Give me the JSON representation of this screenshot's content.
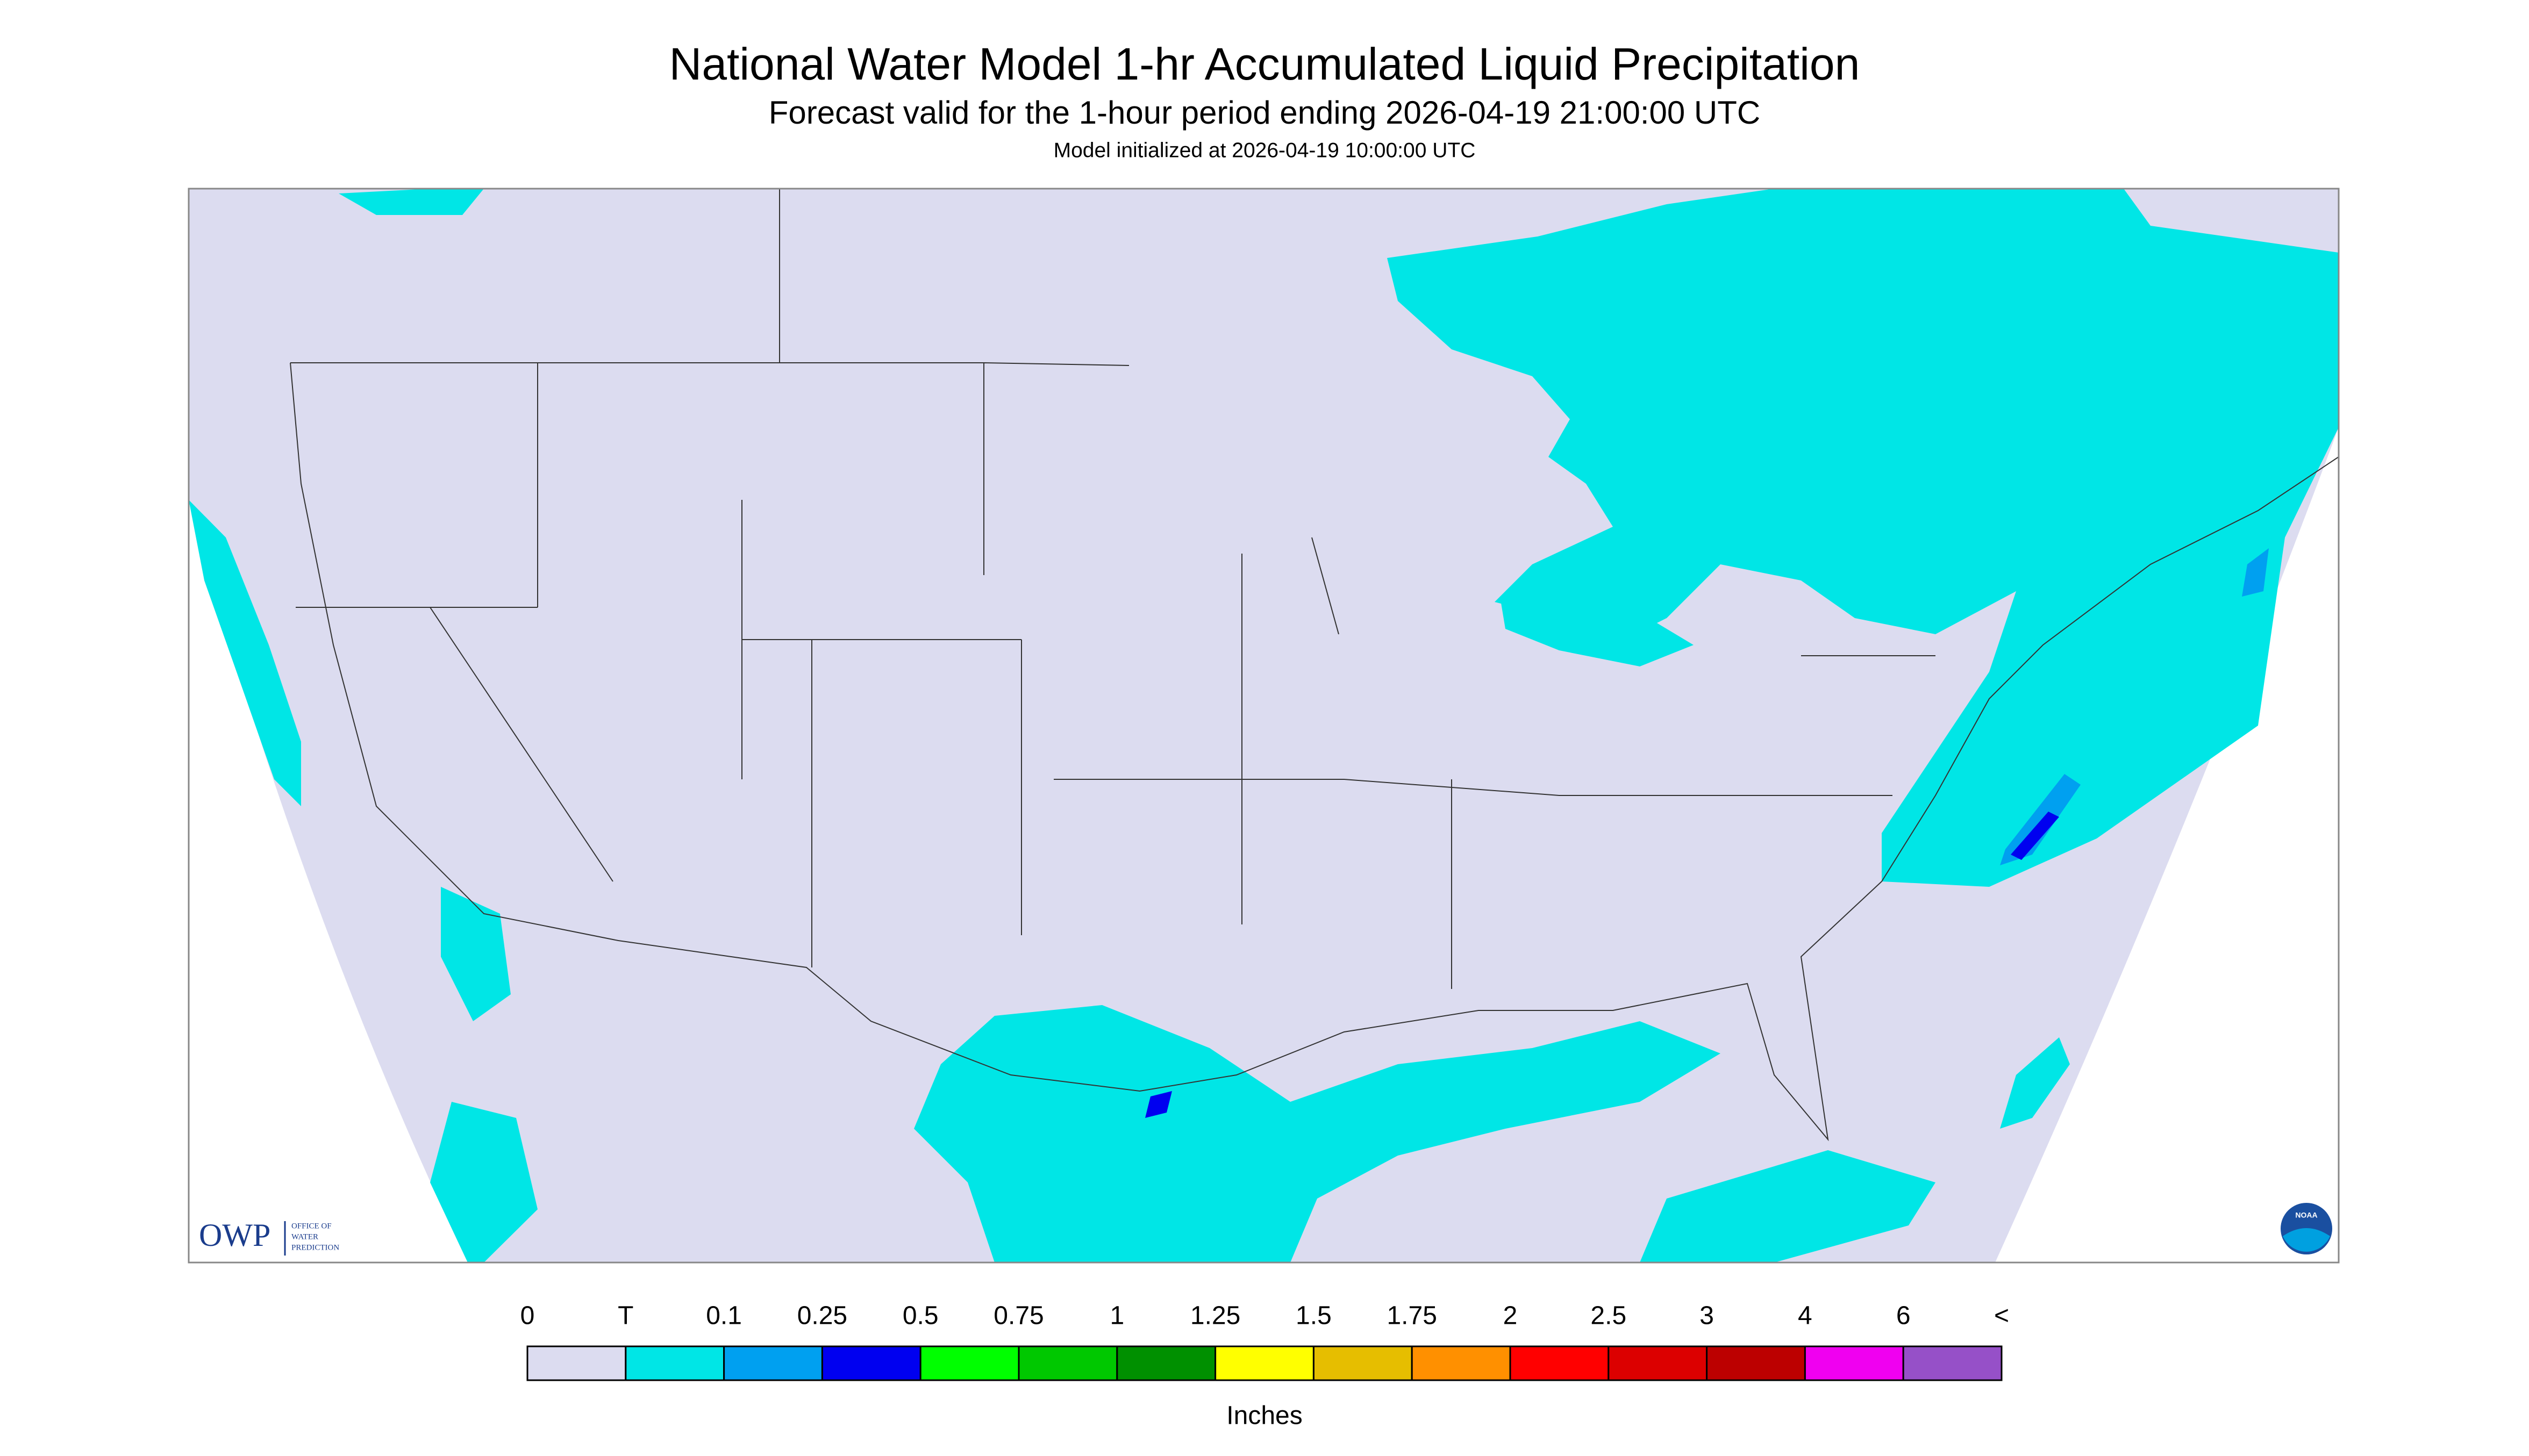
{
  "header": {
    "title": "National Water Model 1-hr Accumulated Liquid Precipitation",
    "subtitle": "Forecast valid for the 1-hour period ending 2026-04-19 21:00:00 UTC",
    "note": "Model initialized at 2026-04-19 10:00:00 UTC"
  },
  "logo": {
    "text": "OWP",
    "lines": [
      "OFFICE OF",
      "WATER",
      "PREDICTION"
    ],
    "badge": "NOAA"
  },
  "legend": {
    "labels": [
      "0",
      "T",
      "0.1",
      "0.25",
      "0.5",
      "0.75",
      "1",
      "1.25",
      "1.5",
      "1.75",
      "2",
      "2.5",
      "3",
      "4",
      "6",
      "<"
    ],
    "colors": [
      "#dcdcf0",
      "#00e6e6",
      "#00a0f0",
      "#0000f0",
      "#00ff00",
      "#00c800",
      "#009000",
      "#ffff00",
      "#e6be00",
      "#ff9000",
      "#ff0000",
      "#dc0000",
      "#bc0000",
      "#f000f0",
      "#9650c8"
    ],
    "unit": "Inches"
  }
}
